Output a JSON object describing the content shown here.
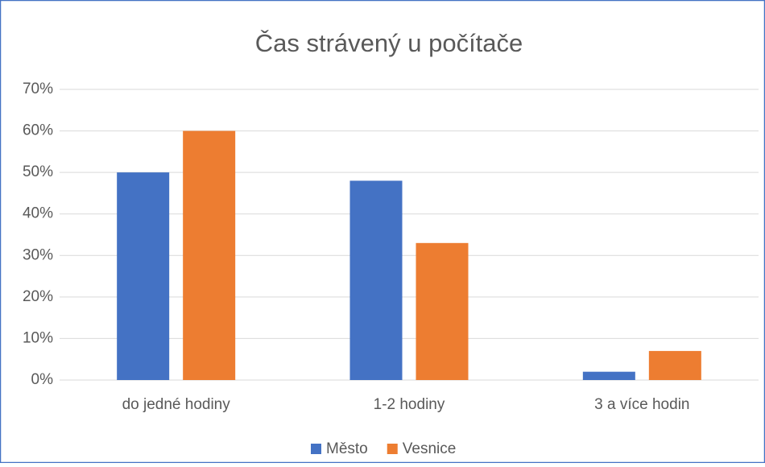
{
  "chart_data": {
    "type": "bar",
    "title": "Čas strávený u počítače",
    "categories": [
      "do jedné hodiny",
      "1-2 hodiny",
      "3 a více hodin"
    ],
    "series": [
      {
        "name": "Město",
        "color": "#4472c4",
        "values": [
          50,
          48,
          2
        ]
      },
      {
        "name": "Vesnice",
        "color": "#ed7d31",
        "values": [
          60,
          33,
          7
        ]
      }
    ],
    "ylim": [
      0,
      70
    ],
    "yticks": [
      {
        "value": 0,
        "label": "0%"
      },
      {
        "value": 10,
        "label": "10%"
      },
      {
        "value": 20,
        "label": "20%"
      },
      {
        "value": 30,
        "label": "30%"
      },
      {
        "value": 40,
        "label": "40%"
      },
      {
        "value": 50,
        "label": "50%"
      },
      {
        "value": 60,
        "label": "60%"
      },
      {
        "value": 70,
        "label": "70%"
      }
    ],
    "grid": true,
    "legend": "bottom"
  }
}
